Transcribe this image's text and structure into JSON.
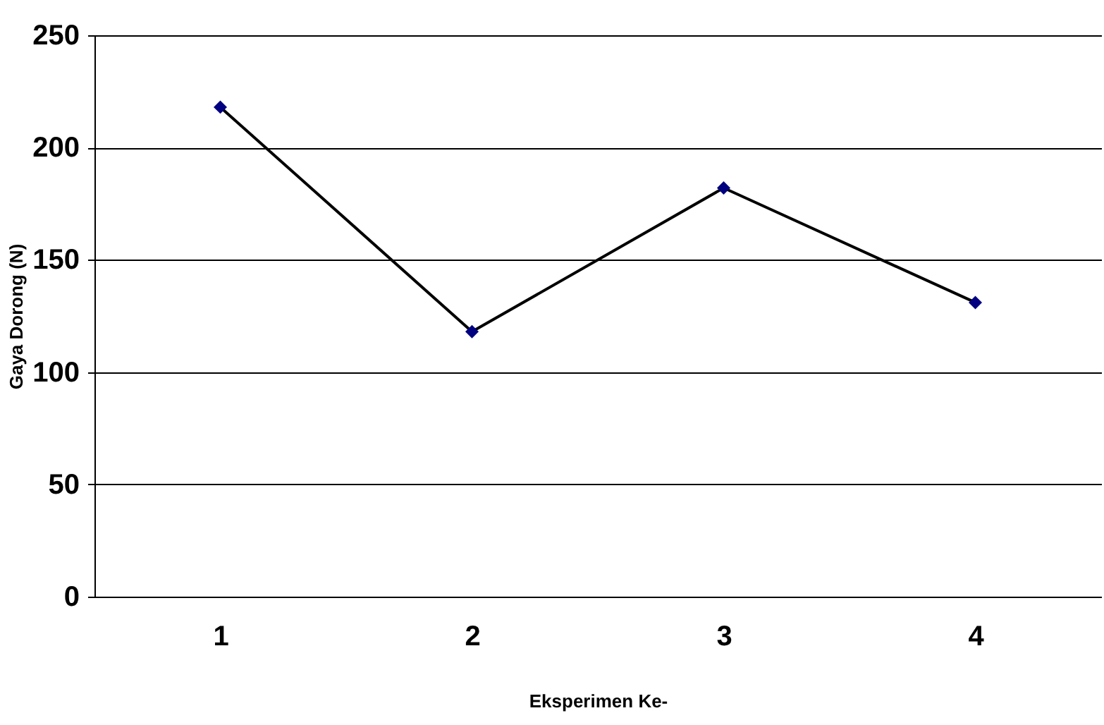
{
  "chart_data": {
    "type": "line",
    "xlabel": "Eksperimen Ke-",
    "ylabel": "Gaya Dorong (N)",
    "categories": [
      "1",
      "2",
      "3",
      "4"
    ],
    "series": [
      {
        "color": "#000080",
        "values": [
          218,
          118,
          182,
          131
        ]
      }
    ],
    "ylim": [
      0,
      250
    ],
    "yticks": [
      0,
      50,
      100,
      150,
      200,
      250
    ],
    "grid": "y",
    "marker": "diamond",
    "line_style": "solid"
  }
}
